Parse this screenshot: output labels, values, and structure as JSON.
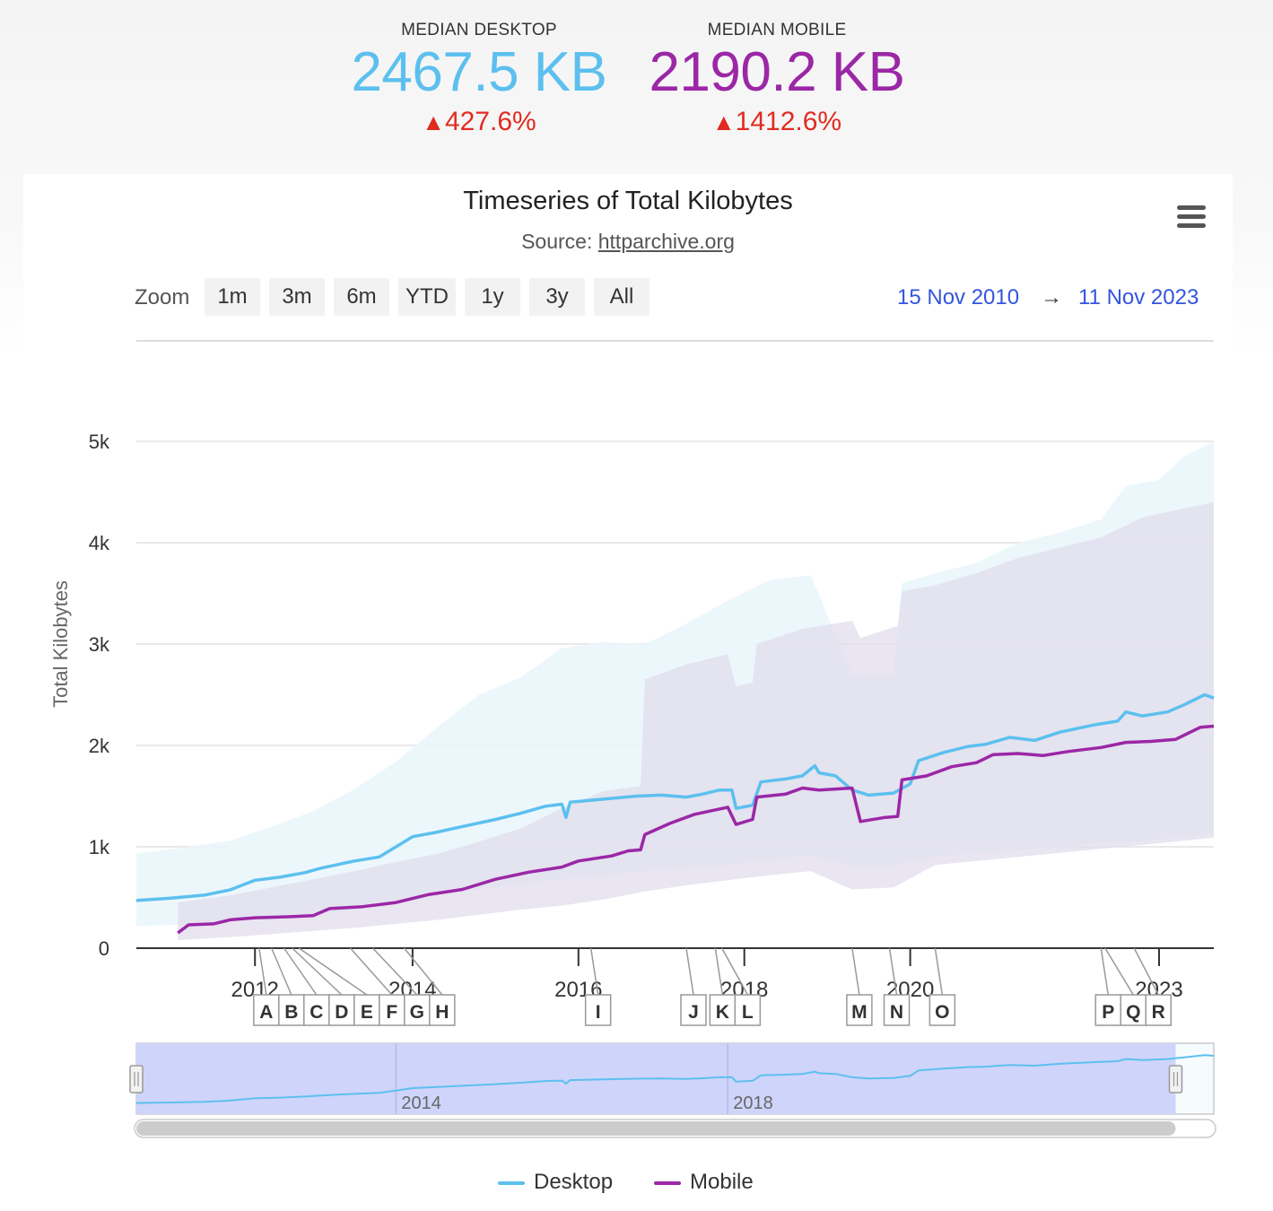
{
  "metrics": {
    "desktop": {
      "label": "MEDIAN DESKTOP",
      "value": "2467.5 KB",
      "change_arrow": "▲",
      "change": "427.6%"
    },
    "mobile": {
      "label": "MEDIAN MOBILE",
      "value": "2190.2 KB",
      "change_arrow": "▲",
      "change": "1412.6%"
    }
  },
  "colors": {
    "desktop": "#5cc0ef",
    "mobile": "#9b27a6",
    "desktop_band": "#eaf6fc",
    "mobile_band": "#e2dcec",
    "navigator_fill": "#cfd4fa",
    "range_text": "#3355dd",
    "change_red": "#e02b20"
  },
  "toolbar": {
    "zoom_label": "Zoom",
    "zoom_buttons": [
      "1m",
      "3m",
      "6m",
      "YTD",
      "1y",
      "3y",
      "All"
    ],
    "range_from": "15 Nov 2010",
    "range_arrow": "→",
    "range_to": "11 Nov 2023",
    "menu_icon": "hamburger-icon"
  },
  "chart_data": {
    "type": "line",
    "title": "Timeseries of Total Kilobytes",
    "subtitle_prefix": "Source: ",
    "subtitle_link": "httparchive.org",
    "ylabel": "Total Kilobytes",
    "xlim": [
      2010.87,
      2023.86
    ],
    "ylim": [
      0,
      5000
    ],
    "yticks": [
      0,
      1000,
      2000,
      3000,
      4000,
      5000
    ],
    "ytick_labels": [
      "0",
      "1k",
      "2k",
      "3k",
      "4k",
      "5k"
    ],
    "xticks": [
      2012.3,
      2014.2,
      2016.2,
      2018.2,
      2020.2,
      2023.2
    ],
    "xtick_labels": [
      "2012",
      "2014",
      "2016",
      "2018",
      "2020",
      "2023"
    ],
    "grid": true,
    "series": [
      {
        "name": "Desktop",
        "points": [
          [
            2010.87,
            470
          ],
          [
            2011.3,
            495
          ],
          [
            2011.7,
            525
          ],
          [
            2012.0,
            575
          ],
          [
            2012.3,
            670
          ],
          [
            2012.6,
            700
          ],
          [
            2012.9,
            745
          ],
          [
            2013.1,
            790
          ],
          [
            2013.5,
            860
          ],
          [
            2013.8,
            900
          ],
          [
            2014.0,
            1000
          ],
          [
            2014.2,
            1100
          ],
          [
            2014.5,
            1145
          ],
          [
            2014.8,
            1200
          ],
          [
            2015.2,
            1270
          ],
          [
            2015.5,
            1330
          ],
          [
            2015.8,
            1400
          ],
          [
            2016.0,
            1420
          ],
          [
            2016.05,
            1290
          ],
          [
            2016.1,
            1440
          ],
          [
            2016.5,
            1470
          ],
          [
            2016.9,
            1500
          ],
          [
            2017.2,
            1510
          ],
          [
            2017.5,
            1490
          ],
          [
            2017.7,
            1520
          ],
          [
            2017.9,
            1560
          ],
          [
            2018.05,
            1560
          ],
          [
            2018.1,
            1380
          ],
          [
            2018.3,
            1410
          ],
          [
            2018.4,
            1640
          ],
          [
            2018.7,
            1670
          ],
          [
            2018.9,
            1700
          ],
          [
            2019.05,
            1800
          ],
          [
            2019.1,
            1730
          ],
          [
            2019.3,
            1700
          ],
          [
            2019.5,
            1560
          ],
          [
            2019.7,
            1510
          ],
          [
            2020.0,
            1530
          ],
          [
            2020.2,
            1620
          ],
          [
            2020.3,
            1850
          ],
          [
            2020.6,
            1930
          ],
          [
            2020.9,
            1990
          ],
          [
            2021.1,
            2010
          ],
          [
            2021.4,
            2080
          ],
          [
            2021.7,
            2050
          ],
          [
            2022.0,
            2130
          ],
          [
            2022.4,
            2200
          ],
          [
            2022.7,
            2240
          ],
          [
            2022.8,
            2330
          ],
          [
            2023.0,
            2290
          ],
          [
            2023.3,
            2330
          ],
          [
            2023.5,
            2400
          ],
          [
            2023.75,
            2500
          ],
          [
            2023.86,
            2467.5
          ]
        ]
      },
      {
        "name": "Mobile",
        "points": [
          [
            2011.37,
            150
          ],
          [
            2011.5,
            230
          ],
          [
            2011.8,
            240
          ],
          [
            2012.0,
            280
          ],
          [
            2012.3,
            300
          ],
          [
            2012.7,
            310
          ],
          [
            2013.0,
            320
          ],
          [
            2013.2,
            390
          ],
          [
            2013.6,
            410
          ],
          [
            2014.0,
            450
          ],
          [
            2014.4,
            530
          ],
          [
            2014.8,
            580
          ],
          [
            2015.2,
            680
          ],
          [
            2015.6,
            750
          ],
          [
            2016.0,
            800
          ],
          [
            2016.2,
            860
          ],
          [
            2016.6,
            910
          ],
          [
            2016.8,
            960
          ],
          [
            2016.95,
            970
          ],
          [
            2017.0,
            1120
          ],
          [
            2017.3,
            1230
          ],
          [
            2017.6,
            1320
          ],
          [
            2018.0,
            1390
          ],
          [
            2018.1,
            1220
          ],
          [
            2018.3,
            1270
          ],
          [
            2018.35,
            1490
          ],
          [
            2018.7,
            1520
          ],
          [
            2018.9,
            1580
          ],
          [
            2019.1,
            1560
          ],
          [
            2019.5,
            1580
          ],
          [
            2019.6,
            1250
          ],
          [
            2019.9,
            1290
          ],
          [
            2020.05,
            1300
          ],
          [
            2020.1,
            1660
          ],
          [
            2020.4,
            1700
          ],
          [
            2020.7,
            1790
          ],
          [
            2021.0,
            1830
          ],
          [
            2021.2,
            1910
          ],
          [
            2021.5,
            1920
          ],
          [
            2021.8,
            1900
          ],
          [
            2022.1,
            1940
          ],
          [
            2022.5,
            1980
          ],
          [
            2022.8,
            2030
          ],
          [
            2023.1,
            2040
          ],
          [
            2023.4,
            2060
          ],
          [
            2023.7,
            2180
          ],
          [
            2023.86,
            2190.2
          ]
        ]
      }
    ],
    "bands": [
      {
        "name": "Desktop range",
        "upper": [
          [
            2010.87,
            930
          ],
          [
            2011.5,
            1000
          ],
          [
            2012.0,
            1060
          ],
          [
            2012.5,
            1200
          ],
          [
            2013.0,
            1350
          ],
          [
            2013.5,
            1570
          ],
          [
            2014.0,
            1840
          ],
          [
            2014.5,
            2180
          ],
          [
            2015.0,
            2500
          ],
          [
            2015.5,
            2670
          ],
          [
            2016.0,
            2960
          ],
          [
            2016.5,
            3020
          ],
          [
            2017.0,
            3000
          ],
          [
            2017.5,
            3200
          ],
          [
            2018.0,
            3430
          ],
          [
            2018.5,
            3630
          ],
          [
            2019.0,
            3680
          ],
          [
            2019.5,
            2700
          ],
          [
            2020.0,
            2690
          ],
          [
            2020.1,
            3600
          ],
          [
            2020.5,
            3700
          ],
          [
            2021.0,
            3800
          ],
          [
            2021.5,
            4000
          ],
          [
            2022.0,
            4100
          ],
          [
            2022.5,
            4230
          ],
          [
            2022.8,
            4560
          ],
          [
            2023.2,
            4620
          ],
          [
            2023.5,
            4850
          ],
          [
            2023.86,
            5000
          ]
        ],
        "lower": [
          [
            2010.87,
            220
          ],
          [
            2011.5,
            230
          ],
          [
            2012.0,
            260
          ],
          [
            2012.5,
            300
          ],
          [
            2013.0,
            330
          ],
          [
            2013.5,
            380
          ],
          [
            2014.0,
            450
          ],
          [
            2014.5,
            520
          ],
          [
            2015.0,
            580
          ],
          [
            2015.5,
            640
          ],
          [
            2016.0,
            680
          ],
          [
            2016.5,
            720
          ],
          [
            2017.0,
            760
          ],
          [
            2017.5,
            800
          ],
          [
            2018.0,
            820
          ],
          [
            2018.5,
            870
          ],
          [
            2019.0,
            920
          ],
          [
            2019.5,
            800
          ],
          [
            2020.0,
            820
          ],
          [
            2020.5,
            900
          ],
          [
            2021.0,
            940
          ],
          [
            2021.5,
            970
          ],
          [
            2022.0,
            1000
          ],
          [
            2022.5,
            1040
          ],
          [
            2023.0,
            1060
          ],
          [
            2023.5,
            1100
          ],
          [
            2023.86,
            1130
          ]
        ]
      },
      {
        "name": "Mobile range",
        "upper": [
          [
            2011.37,
            450
          ],
          [
            2012.0,
            520
          ],
          [
            2012.5,
            600
          ],
          [
            2013.0,
            680
          ],
          [
            2013.5,
            760
          ],
          [
            2014.0,
            850
          ],
          [
            2014.5,
            930
          ],
          [
            2015.0,
            1050
          ],
          [
            2015.5,
            1180
          ],
          [
            2016.0,
            1380
          ],
          [
            2016.5,
            1550
          ],
          [
            2016.95,
            1600
          ],
          [
            2017.0,
            2650
          ],
          [
            2017.5,
            2800
          ],
          [
            2018.0,
            2900
          ],
          [
            2018.1,
            2580
          ],
          [
            2018.3,
            2620
          ],
          [
            2018.35,
            3000
          ],
          [
            2018.9,
            3150
          ],
          [
            2019.5,
            3230
          ],
          [
            2019.6,
            3060
          ],
          [
            2020.05,
            3180
          ],
          [
            2020.1,
            3520
          ],
          [
            2020.5,
            3580
          ],
          [
            2021.0,
            3700
          ],
          [
            2021.5,
            3850
          ],
          [
            2022.0,
            3950
          ],
          [
            2022.5,
            4050
          ],
          [
            2023.0,
            4250
          ],
          [
            2023.4,
            4320
          ],
          [
            2023.86,
            4400
          ]
        ],
        "lower": [
          [
            2011.37,
            80
          ],
          [
            2012.0,
            110
          ],
          [
            2012.5,
            140
          ],
          [
            2013.0,
            170
          ],
          [
            2013.5,
            200
          ],
          [
            2014.0,
            240
          ],
          [
            2014.5,
            280
          ],
          [
            2015.0,
            330
          ],
          [
            2015.5,
            380
          ],
          [
            2016.0,
            420
          ],
          [
            2016.5,
            480
          ],
          [
            2017.0,
            560
          ],
          [
            2017.5,
            620
          ],
          [
            2018.0,
            670
          ],
          [
            2018.5,
            720
          ],
          [
            2019.0,
            760
          ],
          [
            2019.5,
            580
          ],
          [
            2020.0,
            600
          ],
          [
            2020.5,
            820
          ],
          [
            2021.0,
            860
          ],
          [
            2021.5,
            900
          ],
          [
            2022.0,
            940
          ],
          [
            2022.5,
            980
          ],
          [
            2023.0,
            1020
          ],
          [
            2023.5,
            1060
          ],
          [
            2023.86,
            1090
          ]
        ]
      }
    ],
    "annotations": [
      {
        "label": "A",
        "x": 2012.35
      },
      {
        "label": "B",
        "x": 2012.5
      },
      {
        "label": "C",
        "x": 2012.65
      },
      {
        "label": "D",
        "x": 2012.75
      },
      {
        "label": "E",
        "x": 2012.83
      },
      {
        "label": "F",
        "x": 2013.45
      },
      {
        "label": "G",
        "x": 2013.72
      },
      {
        "label": "H",
        "x": 2014.1
      },
      {
        "label": "I",
        "x": 2016.35
      },
      {
        "label": "J",
        "x": 2017.5
      },
      {
        "label": "K",
        "x": 2017.85
      },
      {
        "label": "L",
        "x": 2017.93
      },
      {
        "label": "M",
        "x": 2019.5
      },
      {
        "label": "N",
        "x": 2019.95
      },
      {
        "label": "O",
        "x": 2020.5
      },
      {
        "label": "P",
        "x": 2022.5
      },
      {
        "label": "Q",
        "x": 2022.55
      },
      {
        "label": "R",
        "x": 2022.9
      }
    ],
    "navigator": {
      "tick_labels": [
        "2014",
        "2018"
      ],
      "tick_values": [
        2014.0,
        2018.0
      ]
    },
    "legend": [
      "Desktop",
      "Mobile"
    ],
    "legend_position": "bottom-center"
  }
}
